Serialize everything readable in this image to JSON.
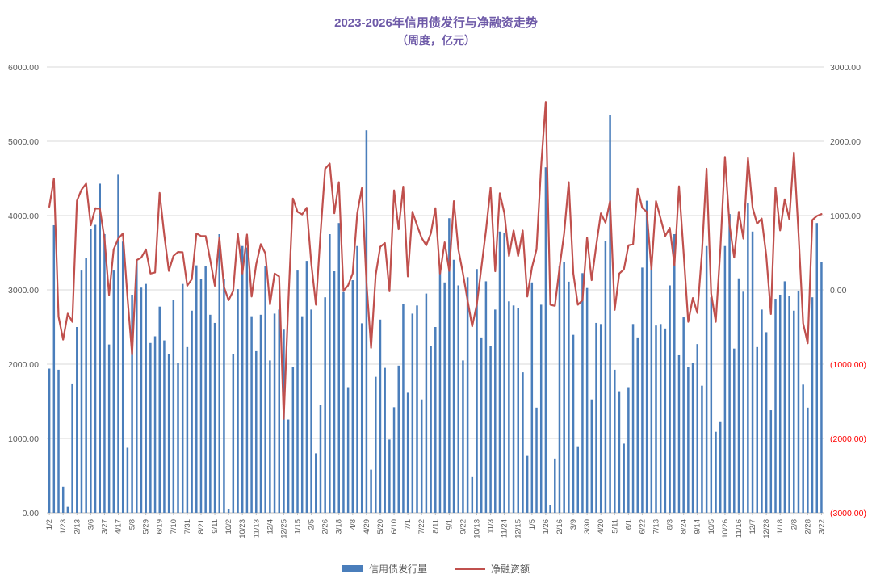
{
  "title": {
    "line1": "2023-2026年信用债发行与净融资走势",
    "line2": "（周度，亿元）"
  },
  "legend": [
    {
      "label": "信用债发行量",
      "type": "bar",
      "color": "#4a7ebb"
    },
    {
      "label": "净融资额",
      "type": "line",
      "color": "#c0504d"
    }
  ],
  "colors": {
    "title": "#6e5aa8",
    "bar": "#4a7ebb",
    "line": "#c0504d",
    "grid": "#d9d9d9",
    "axis": "#bfbfbf",
    "tick_text": "#595959",
    "negative_tick_text": "#ff0000",
    "background": "#ffffff"
  },
  "chart_data": {
    "type": "bar",
    "subtype": "bar-plus-line-dual-axis",
    "title": "2023-2026年信用债发行与净融资走势",
    "subtitle": "（周度，亿元）",
    "xlabel": "",
    "ylabel_left": "",
    "ylabel_right": "",
    "grid": true,
    "legend_position": "bottom",
    "label_every_n_weeks": 3,
    "x_tick_labels": [
      "1/2",
      "1/23",
      "2/13",
      "3/6",
      "3/27",
      "4/17",
      "5/8",
      "5/29",
      "6/19",
      "7/10",
      "7/31",
      "8/21",
      "9/11",
      "10/2",
      "10/23",
      "11/13",
      "12/4",
      "12/25",
      "1/15",
      "2/5",
      "2/26",
      "3/18",
      "4/8",
      "4/29",
      "5/20",
      "6/10",
      "7/1",
      "7/22",
      "8/11",
      "9/1",
      "9/22",
      "10/13",
      "11/3",
      "11/24",
      "12/15",
      "1/5",
      "1/26",
      "2/16",
      "3/9",
      "3/30",
      "4/20",
      "5/11",
      "6/1",
      "6/22",
      "7/13",
      "8/3",
      "8/24",
      "9/14",
      "10/5",
      "10/26",
      "11/16",
      "12/7",
      "12/28",
      "1/18",
      "2/8",
      "2/28",
      "3/22"
    ],
    "left_axis": {
      "min": 0,
      "max": 6000,
      "step": 1000,
      "tick_labels": [
        "6000.00",
        "5000.00",
        "4000.00",
        "3000.00",
        "2000.00",
        "1000.00",
        "0.00"
      ]
    },
    "right_axis": {
      "min": -3000,
      "max": 3000,
      "step": 1000,
      "tick_labels": [
        "3000.00",
        "2000.00",
        "1000.00",
        "0.00",
        "(1000.00)",
        "(2000.00)",
        "(3000.00)"
      ]
    },
    "series": [
      {
        "name": "信用债发行量",
        "type": "bar",
        "axis": "left",
        "color": "#4a7ebb",
        "values": [
          1940,
          3870,
          1925,
          350,
          80,
          1740,
          2500,
          3260,
          3425,
          3820,
          3875,
          4430,
          3750,
          2265,
          3260,
          4550,
          3650,
          875,
          2935,
          3405,
          3030,
          3080,
          2285,
          2375,
          2775,
          2320,
          2140,
          2865,
          2015,
          3080,
          2230,
          2720,
          3330,
          3150,
          3315,
          2665,
          2555,
          3750,
          3150,
          45,
          2140,
          3010,
          3590,
          3570,
          2645,
          2175,
          2665,
          3315,
          2050,
          2680,
          2735,
          2465,
          1255,
          1960,
          3260,
          2645,
          3390,
          2735,
          800,
          1450,
          2900,
          3750,
          3250,
          3900,
          2970,
          1690,
          3130,
          3590,
          2550,
          5150,
          580,
          1830,
          2600,
          1950,
          985,
          1420,
          1980,
          2810,
          1615,
          2680,
          2790,
          1525,
          2950,
          2250,
          2500,
          3300,
          3100,
          3965,
          3405,
          3060,
          2050,
          3170,
          480,
          3280,
          2360,
          3115,
          2250,
          2735,
          3785,
          3770,
          2845,
          2790,
          2755,
          1890,
          765,
          3100,
          1415,
          2800,
          4650,
          100,
          730,
          3315,
          3370,
          3110,
          2395,
          895,
          3225,
          3025,
          1525,
          2555,
          2540,
          3660,
          5350,
          1925,
          1635,
          930,
          1690,
          2540,
          2360,
          3300,
          4200,
          3370,
          2520,
          2540,
          2480,
          3060,
          3750,
          2120,
          2630,
          1960,
          2015,
          2270,
          1710,
          3590,
          2900,
          1090,
          1220,
          3590,
          4020,
          2210,
          3155,
          2975,
          4165,
          3785,
          2230,
          2735,
          2430,
          1380,
          2880,
          2935,
          3115,
          2915,
          2720,
          2990,
          1725,
          1415,
          2900,
          3900,
          3380
        ]
      },
      {
        "name": "净融资额",
        "type": "line",
        "axis": "right",
        "color": "#c0504d",
        "values": [
          1120,
          1500,
          -360,
          -670,
          -320,
          -430,
          1200,
          1350,
          1430,
          870,
          1100,
          1090,
          690,
          -70,
          545,
          690,
          760,
          -100,
          -870,
          400,
          435,
          545,
          220,
          235,
          1305,
          745,
          255,
          455,
          510,
          505,
          55,
          145,
          760,
          725,
          725,
          400,
          55,
          705,
          40,
          -140,
          -15,
          760,
          220,
          745,
          -90,
          345,
          615,
          490,
          -195,
          220,
          180,
          -1735,
          -180,
          1230,
          1050,
          1015,
          1105,
          350,
          -200,
          760,
          1630,
          1700,
          1030,
          1450,
          -15,
          60,
          220,
          1030,
          1370,
          100,
          -780,
          200,
          580,
          630,
          -20,
          1340,
          815,
          1390,
          180,
          1050,
          870,
          700,
          600,
          760,
          1100,
          220,
          640,
          255,
          1195,
          545,
          220,
          -140,
          -490,
          -200,
          300,
          800,
          1375,
          250,
          1300,
          1030,
          455,
          800,
          455,
          800,
          -90,
          300,
          545,
          1665,
          2530,
          -200,
          -215,
          300,
          760,
          1450,
          220,
          -200,
          -140,
          705,
          130,
          600,
          1030,
          905,
          1195,
          -270,
          220,
          275,
          600,
          615,
          1360,
          1105,
          1050,
          275,
          1195,
          960,
          725,
          835,
          330,
          1395,
          500,
          -430,
          -110,
          -310,
          500,
          1630,
          -50,
          -430,
          550,
          1790,
          870,
          435,
          1050,
          690,
          1775,
          1105,
          890,
          960,
          455,
          -325,
          1375,
          800,
          1220,
          950,
          1850,
          760,
          -450,
          -720,
          940,
          995,
          1020
        ]
      }
    ]
  }
}
